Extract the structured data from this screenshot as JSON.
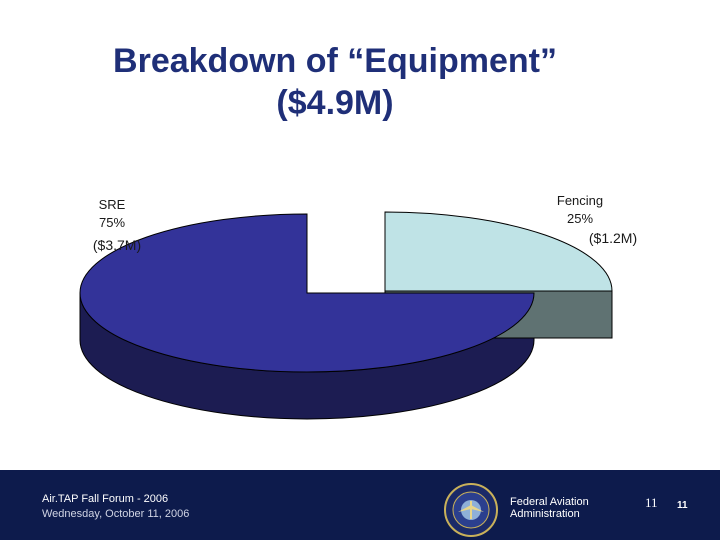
{
  "slide": {
    "title_line1": "Breakdown of “Equipment”",
    "title_line2": "($4.9M)"
  },
  "chart_data": {
    "type": "pie",
    "title": "Breakdown of “Equipment” ($4.9M)",
    "categories": [
      "SRE",
      "Fencing"
    ],
    "values": [
      75,
      25
    ],
    "amounts": [
      "($3.7M)",
      "($1.2M)"
    ],
    "percent_labels": [
      "75%",
      "25%"
    ],
    "colors": {
      "sre_top": "#333399",
      "sre_side": "#1c1c52",
      "fencing_top": "#bfe3e6",
      "fencing_side": "#5f7272",
      "outline": "#000000"
    },
    "exploded_slice": "Fencing",
    "style": "3d"
  },
  "footer": {
    "event": "Air.TAP Fall Forum - 2006",
    "date": "Wednesday, October 11, 2006",
    "agency_line1": "Federal Aviation",
    "agency_line2": "Administration",
    "seal_icon": "faa-seal-icon",
    "page_number_a": "11",
    "page_number_b": "11"
  }
}
